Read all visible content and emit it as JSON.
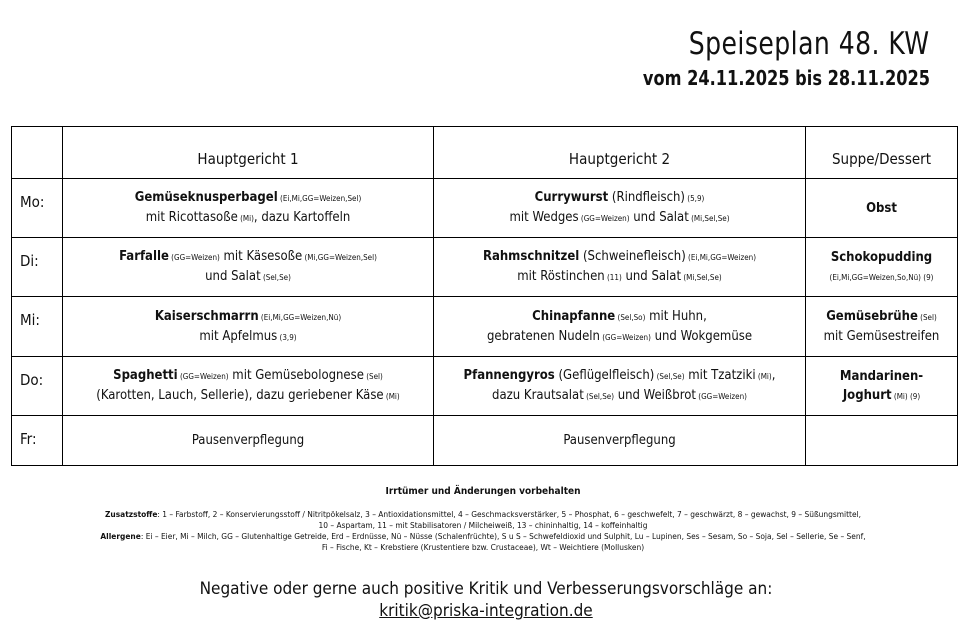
{
  "header": {
    "title": "Speiseplan 48. KW",
    "subtitle": "vom 24.11.2025 bis 28.11.2025"
  },
  "table": {
    "columns": [
      "",
      "Hauptgericht 1",
      "Hauptgericht 2",
      "Suppe/Dessert"
    ],
    "rows": [
      {
        "day": "Mo:",
        "cells": [
          [
            [
              [
                "Gemüseknusperbagel",
                "b"
              ],
              [
                " (Ei,Mi,GG=Weizen,Sel)",
                "s"
              ]
            ],
            [
              [
                "mit Ricottasoße",
                ""
              ],
              [
                " (Mi)",
                "s"
              ],
              [
                ", dazu Kartoffeln",
                ""
              ]
            ]
          ],
          [
            [
              [
                "Currywurst",
                "b"
              ],
              [
                " (Rindfleisch)",
                ""
              ],
              [
                " (5,9)",
                "s"
              ]
            ],
            [
              [
                "mit Wedges",
                ""
              ],
              [
                " (GG=Weizen)",
                "s"
              ],
              [
                " und Salat",
                ""
              ],
              [
                " (Mi,Sel,Se)",
                "s"
              ]
            ]
          ],
          [
            [
              [
                "Obst",
                "b"
              ]
            ]
          ]
        ]
      },
      {
        "day": "Di:",
        "cells": [
          [
            [
              [
                "Farfalle",
                "b"
              ],
              [
                " (GG=Weizen)",
                "s"
              ],
              [
                " mit Käsesoße",
                ""
              ],
              [
                " (Mi,GG=Weizen,Sel)",
                "s"
              ]
            ],
            [
              [
                "und Salat",
                ""
              ],
              [
                " (Sel,Se)",
                "s"
              ]
            ]
          ],
          [
            [
              [
                "Rahmschnitzel",
                "b"
              ],
              [
                " (Schweinefleisch)",
                ""
              ],
              [
                " (Ei,Mi,GG=Weizen)",
                "s"
              ]
            ],
            [
              [
                "mit Röstinchen",
                ""
              ],
              [
                " (11)",
                "s"
              ],
              [
                " und Salat",
                ""
              ],
              [
                " (Mi,Sel,Se)",
                "s"
              ]
            ]
          ],
          [
            [
              [
                "Schokopudding",
                "b"
              ]
            ],
            [
              [
                "(Ei,Mi,GG=Weizen,So,Nü) (9)",
                "s"
              ]
            ]
          ]
        ]
      },
      {
        "day": "Mi:",
        "cells": [
          [
            [
              [
                "Kaiserschmarrn",
                "b"
              ],
              [
                " (Ei,Mi,GG=Weizen,Nü)",
                "s"
              ]
            ],
            [
              [
                "mit Apfelmus",
                ""
              ],
              [
                " (3,9)",
                "s"
              ]
            ]
          ],
          [
            [
              [
                "Chinapfanne",
                "b"
              ],
              [
                " (Sel,So)",
                "s"
              ],
              [
                " mit Huhn,",
                ""
              ]
            ],
            [
              [
                "gebratenen Nudeln",
                ""
              ],
              [
                " (GG=Weizen)",
                "s"
              ],
              [
                " und Wokgemüse",
                ""
              ]
            ]
          ],
          [
            [
              [
                "Gemüsebrühe",
                "b"
              ],
              [
                " (Sel)",
                "s"
              ]
            ],
            [
              [
                "mit Gemüsestreifen",
                ""
              ]
            ]
          ]
        ]
      },
      {
        "day": "Do:",
        "cells": [
          [
            [
              [
                "Spaghetti",
                "b"
              ],
              [
                " (GG=Weizen)",
                "s"
              ],
              [
                " mit Gemüsebolognese",
                ""
              ],
              [
                " (Sel)",
                "s"
              ]
            ],
            [
              [
                "(Karotten, Lauch, Sellerie), dazu geriebener Käse",
                ""
              ],
              [
                " (Mi)",
                "s"
              ]
            ]
          ],
          [
            [
              [
                "Pfannengyros",
                "b"
              ],
              [
                " (Geflügelfleisch)",
                ""
              ],
              [
                " (Sel,Se)",
                "s"
              ],
              [
                " mit Tzatziki",
                ""
              ],
              [
                " (Mi)",
                "s"
              ],
              [
                ",",
                ""
              ]
            ],
            [
              [
                "dazu Krautsalat",
                ""
              ],
              [
                " (Sel,Se)",
                "s"
              ],
              [
                " und Weißbrot",
                ""
              ],
              [
                " (GG=Weizen)",
                "s"
              ]
            ]
          ],
          [
            [
              [
                "Mandarinen-",
                "b"
              ]
            ],
            [
              [
                "Joghurt",
                "b"
              ],
              [
                " (Mi) (9)",
                "s"
              ]
            ]
          ]
        ]
      },
      {
        "day": "Fr:",
        "cells": [
          [
            [
              [
                "Pausenverpflegung",
                ""
              ]
            ]
          ],
          [
            [
              [
                "Pausenverpflegung",
                ""
              ]
            ]
          ],
          []
        ]
      }
    ]
  },
  "footer": {
    "disclaimer": "Irrtümer und Änderungen vorbehalten",
    "additives_label": "Zusatzstoffe",
    "additives": ": 1 – Farbstoff, 2 – Konservierungsstoff / Nitritpökelsalz, 3 – Antioxidationsmittel, 4 – Geschmacksverstärker, 5 – Phosphat, 6 – geschwefelt, 7 – geschwärzt, 8 – gewachst, 9 – Süßungsmittel, 10 – Aspartam, 11 – mit Stabilisatoren / Milcheiweiß, 13 – chininhaltig, 14 – koffeinhaltig",
    "allergens_label": "Allergene",
    "allergens": ": Ei – Eier, Mi – Milch, GG – Glutenhaltige Getreide, Erd – Erdnüsse, Nü – Nüsse (Schalenfrüchte), S u S – Schwefeldioxid und Sulphit, Lu – Lupinen, Ses – Sesam, So – Soja, Sel – Sellerie, Se – Senf, Fi – Fische, Kt – Krebstiere (Krustentiere bzw. Crustaceae), Wt – Weichtiere (Mollusken)",
    "feedback": "Negative oder gerne auch positive Kritik und Verbesserungsvorschläge an:",
    "email": "kritik@priska-integration.de"
  }
}
